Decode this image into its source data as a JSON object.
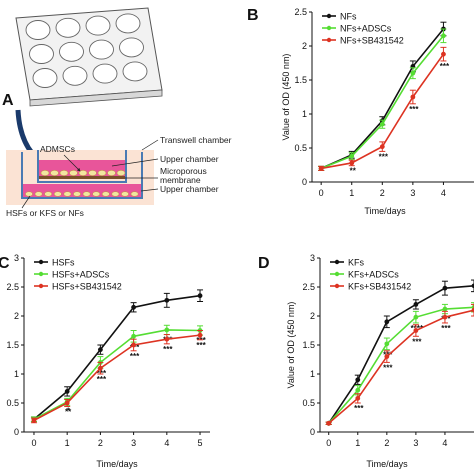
{
  "panel_labels": [
    "A",
    "B",
    "C",
    "D"
  ],
  "diagram": {
    "labels": {
      "admscs": "ADMSCs",
      "transwell": "Transwell chamber",
      "upper_chamber": "Upper chamber",
      "membrane_line1": "Microporous",
      "membrane_line2": "membrane",
      "lower_chamber": "Upper chamber",
      "cells": "HSFs or KFS or NFs"
    },
    "colors": {
      "medium": "#e8559a",
      "background": "#fbe3d4",
      "cells": "#f2e6a0",
      "arrow": "#1a3a6b"
    }
  },
  "series_colors": [
    "#111111",
    "#55dd33",
    "#dd3322"
  ],
  "chart_data": [
    {
      "panel": "B",
      "type": "line",
      "x": [
        0,
        1,
        2,
        3,
        4
      ],
      "xlabel": "Time/days",
      "ylabel": "Value of OD (450 nm)",
      "xlim": [
        -0.3,
        5
      ],
      "ylim": [
        0,
        2.5
      ],
      "xticks": [
        "0",
        "1",
        "2",
        "3",
        "4"
      ],
      "yticks": [
        "0",
        "0.5",
        "1",
        "1.5",
        "2",
        "2.5"
      ],
      "legend_placement": "top-left",
      "series": [
        {
          "name": "NFs",
          "values": [
            0.2,
            0.4,
            0.9,
            1.7,
            2.25
          ],
          "errors": [
            0.03,
            0.05,
            0.06,
            0.08,
            0.1
          ],
          "labels": []
        },
        {
          "name": "NFs+ADSCs",
          "values": [
            0.2,
            0.38,
            0.85,
            1.6,
            2.15
          ],
          "errors": [
            0.03,
            0.05,
            0.06,
            0.08,
            0.1
          ],
          "labels": []
        },
        {
          "name": "NFs+SB431542",
          "values": [
            0.2,
            0.28,
            0.52,
            1.25,
            1.88
          ],
          "errors": [
            0.03,
            0.04,
            0.07,
            0.1,
            0.1
          ],
          "labels": [
            "",
            "**",
            "***",
            "***",
            "***"
          ]
        }
      ]
    },
    {
      "panel": "C",
      "type": "line",
      "x": [
        0,
        1,
        2,
        3,
        4,
        5
      ],
      "xlabel": "Time/days",
      "ylabel": "",
      "xlim": [
        -0.3,
        5.3
      ],
      "ylim": [
        0,
        3.0
      ],
      "xticks": [
        "0",
        "1",
        "2",
        "3",
        "4",
        "5"
      ],
      "yticks": [
        "0",
        "0.5",
        "1",
        "1.5",
        "2",
        "2.5",
        "3"
      ],
      "legend_placement": "top-left",
      "series": [
        {
          "name": "HSFs",
          "values": [
            0.22,
            0.7,
            1.42,
            2.15,
            2.27,
            2.35
          ],
          "errors": [
            0.04,
            0.08,
            0.08,
            0.08,
            0.12,
            0.1
          ],
          "labels": []
        },
        {
          "name": "HSFs+ADSCs",
          "values": [
            0.22,
            0.52,
            1.2,
            1.65,
            1.76,
            1.75
          ],
          "errors": [
            0.04,
            0.06,
            0.1,
            0.1,
            0.08,
            0.08
          ],
          "labels": [
            "",
            "*",
            "***",
            "***",
            "***",
            "***"
          ]
        },
        {
          "name": "HSFs+SB431542",
          "values": [
            0.2,
            0.5,
            1.1,
            1.5,
            1.6,
            1.67
          ],
          "errors": [
            0.04,
            0.06,
            0.1,
            0.1,
            0.08,
            0.08
          ],
          "labels": [
            "",
            "**",
            "***",
            "***",
            "***",
            "***"
          ]
        }
      ]
    },
    {
      "panel": "D",
      "type": "line",
      "x": [
        0,
        1,
        2,
        3,
        4,
        5
      ],
      "xlabel": "Time/days",
      "ylabel": "Value of OD (450 nm)",
      "xlim": [
        -0.3,
        5
      ],
      "ylim": [
        0,
        3.0
      ],
      "xticks": [
        "0",
        "1",
        "2",
        "3",
        "4"
      ],
      "yticks": [
        "0",
        "0.5",
        "1",
        "1.5",
        "2",
        "2.5",
        "3"
      ],
      "legend_placement": "top-left",
      "series": [
        {
          "name": "KFs",
          "values": [
            0.15,
            0.9,
            1.9,
            2.2,
            2.48,
            2.52
          ],
          "errors": [
            0.02,
            0.08,
            0.1,
            0.08,
            0.12,
            0.1
          ],
          "labels": []
        },
        {
          "name": "KFs+ADSCs",
          "values": [
            0.15,
            0.72,
            1.52,
            1.98,
            2.12,
            2.15
          ],
          "errors": [
            0.02,
            0.08,
            0.1,
            0.1,
            0.08,
            0.08
          ],
          "labels": [
            "",
            "",
            "***",
            "****",
            "***",
            ""
          ]
        },
        {
          "name": "KFs+SB431542",
          "values": [
            0.15,
            0.58,
            1.3,
            1.75,
            1.98,
            2.1
          ],
          "errors": [
            0.02,
            0.08,
            0.1,
            0.1,
            0.1,
            0.1
          ],
          "labels": [
            "",
            "***",
            "***",
            "***",
            "***",
            ""
          ]
        }
      ]
    }
  ]
}
